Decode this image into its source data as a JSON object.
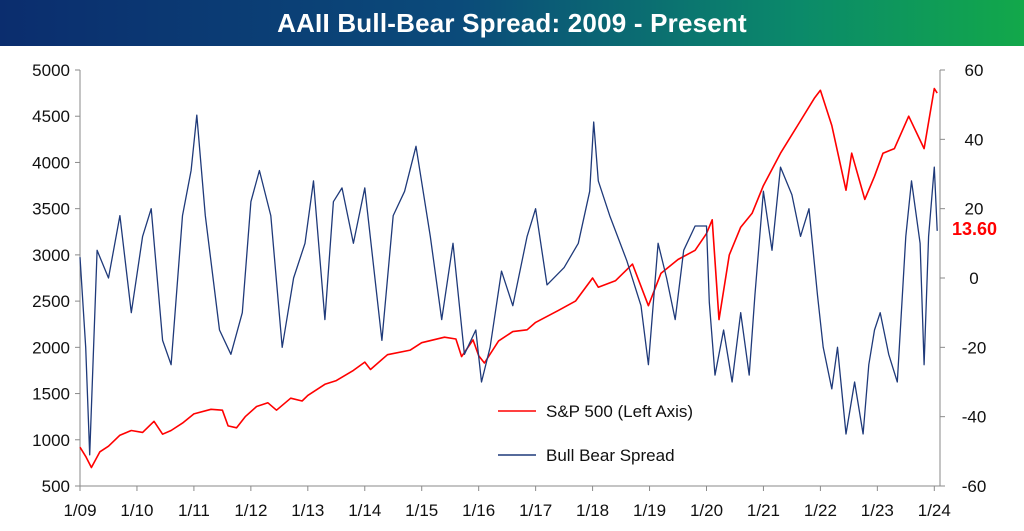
{
  "title": "AAII Bull-Bear Spread: 2009 - Present",
  "colors": {
    "sp500": "#ff0000",
    "spread": "#1f3a7a",
    "callout": "#ff0000"
  },
  "chart_data": {
    "type": "line",
    "title": "AAII Bull-Bear Spread: 2009 - Present",
    "x_range": [
      2009.0,
      2024.1
    ],
    "x_tick_labels": [
      "1/09",
      "1/10",
      "1/11",
      "1/12",
      "1/13",
      "1/14",
      "1/15",
      "1/16",
      "1/17",
      "1/18",
      "1/19",
      "1/20",
      "1/21",
      "1/22",
      "1/23",
      "1/24"
    ],
    "x_tick_values": [
      2009,
      2010,
      2011,
      2012,
      2013,
      2014,
      2015,
      2016,
      2017,
      2018,
      2019,
      2020,
      2021,
      2022,
      2023,
      2024
    ],
    "left_axis": {
      "range": [
        500,
        5000
      ],
      "ticks": [
        5000,
        4500,
        4000,
        3500,
        3000,
        2500,
        2000,
        1500,
        1000,
        500
      ]
    },
    "right_axis": {
      "range": [
        -60,
        60
      ],
      "ticks": [
        60,
        40,
        20,
        0,
        -20,
        -40,
        -60
      ]
    },
    "legend": [
      "S&P 500 (Left Axis)",
      "Bull Bear Spread"
    ],
    "legend_position": "lower-center",
    "latest_value_label": "13.60",
    "series": [
      {
        "name": "S&P 500 (Left Axis)",
        "axis": "left",
        "points": [
          [
            2009.0,
            920
          ],
          [
            2009.1,
            820
          ],
          [
            2009.2,
            700
          ],
          [
            2009.35,
            870
          ],
          [
            2009.5,
            930
          ],
          [
            2009.7,
            1050
          ],
          [
            2009.9,
            1100
          ],
          [
            2010.1,
            1080
          ],
          [
            2010.3,
            1200
          ],
          [
            2010.45,
            1060
          ],
          [
            2010.6,
            1100
          ],
          [
            2010.8,
            1180
          ],
          [
            2011.0,
            1280
          ],
          [
            2011.3,
            1330
          ],
          [
            2011.5,
            1320
          ],
          [
            2011.6,
            1150
          ],
          [
            2011.75,
            1130
          ],
          [
            2011.9,
            1250
          ],
          [
            2012.1,
            1360
          ],
          [
            2012.3,
            1400
          ],
          [
            2012.45,
            1320
          ],
          [
            2012.7,
            1450
          ],
          [
            2012.9,
            1420
          ],
          [
            2013.0,
            1480
          ],
          [
            2013.3,
            1600
          ],
          [
            2013.5,
            1640
          ],
          [
            2013.8,
            1750
          ],
          [
            2014.0,
            1840
          ],
          [
            2014.1,
            1760
          ],
          [
            2014.4,
            1920
          ],
          [
            2014.8,
            1970
          ],
          [
            2015.0,
            2050
          ],
          [
            2015.4,
            2110
          ],
          [
            2015.6,
            2090
          ],
          [
            2015.7,
            1900
          ],
          [
            2015.9,
            2080
          ],
          [
            2016.0,
            1910
          ],
          [
            2016.1,
            1830
          ],
          [
            2016.35,
            2070
          ],
          [
            2016.6,
            2170
          ],
          [
            2016.85,
            2190
          ],
          [
            2017.0,
            2270
          ],
          [
            2017.4,
            2400
          ],
          [
            2017.7,
            2500
          ],
          [
            2018.0,
            2750
          ],
          [
            2018.1,
            2650
          ],
          [
            2018.4,
            2720
          ],
          [
            2018.7,
            2900
          ],
          [
            2018.98,
            2450
          ],
          [
            2019.2,
            2800
          ],
          [
            2019.5,
            2950
          ],
          [
            2019.8,
            3050
          ],
          [
            2020.0,
            3230
          ],
          [
            2020.1,
            3380
          ],
          [
            2020.22,
            2300
          ],
          [
            2020.4,
            3000
          ],
          [
            2020.6,
            3300
          ],
          [
            2020.8,
            3450
          ],
          [
            2021.0,
            3750
          ],
          [
            2021.3,
            4100
          ],
          [
            2021.6,
            4400
          ],
          [
            2021.9,
            4700
          ],
          [
            2022.0,
            4780
          ],
          [
            2022.2,
            4400
          ],
          [
            2022.45,
            3700
          ],
          [
            2022.55,
            4100
          ],
          [
            2022.78,
            3600
          ],
          [
            2022.95,
            3850
          ],
          [
            2023.1,
            4100
          ],
          [
            2023.3,
            4150
          ],
          [
            2023.55,
            4500
          ],
          [
            2023.82,
            4150
          ],
          [
            2024.0,
            4800
          ],
          [
            2024.05,
            4750
          ]
        ]
      },
      {
        "name": "Bull Bear Spread",
        "axis": "right",
        "points": [
          [
            2009.0,
            6
          ],
          [
            2009.1,
            -20
          ],
          [
            2009.17,
            -51
          ],
          [
            2009.3,
            8
          ],
          [
            2009.5,
            0
          ],
          [
            2009.7,
            18
          ],
          [
            2009.9,
            -10
          ],
          [
            2010.1,
            12
          ],
          [
            2010.25,
            20
          ],
          [
            2010.45,
            -18
          ],
          [
            2010.6,
            -25
          ],
          [
            2010.8,
            18
          ],
          [
            2010.95,
            31
          ],
          [
            2011.05,
            47
          ],
          [
            2011.2,
            18
          ],
          [
            2011.45,
            -15
          ],
          [
            2011.65,
            -22
          ],
          [
            2011.85,
            -10
          ],
          [
            2012.0,
            22
          ],
          [
            2012.15,
            31
          ],
          [
            2012.35,
            18
          ],
          [
            2012.55,
            -20
          ],
          [
            2012.75,
            0
          ],
          [
            2012.95,
            10
          ],
          [
            2013.1,
            28
          ],
          [
            2013.3,
            -12
          ],
          [
            2013.45,
            22
          ],
          [
            2013.6,
            26
          ],
          [
            2013.8,
            10
          ],
          [
            2014.0,
            26
          ],
          [
            2014.3,
            -18
          ],
          [
            2014.5,
            18
          ],
          [
            2014.7,
            25
          ],
          [
            2014.9,
            38
          ],
          [
            2015.15,
            12
          ],
          [
            2015.35,
            -12
          ],
          [
            2015.55,
            10
          ],
          [
            2015.75,
            -22
          ],
          [
            2015.95,
            -15
          ],
          [
            2016.05,
            -30
          ],
          [
            2016.2,
            -20
          ],
          [
            2016.4,
            2
          ],
          [
            2016.6,
            -8
          ],
          [
            2016.85,
            12
          ],
          [
            2017.0,
            20
          ],
          [
            2017.2,
            -2
          ],
          [
            2017.5,
            3
          ],
          [
            2017.75,
            10
          ],
          [
            2017.95,
            25
          ],
          [
            2018.02,
            45
          ],
          [
            2018.1,
            28
          ],
          [
            2018.3,
            18
          ],
          [
            2018.6,
            5
          ],
          [
            2018.85,
            -8
          ],
          [
            2018.98,
            -25
          ],
          [
            2019.15,
            10
          ],
          [
            2019.3,
            0
          ],
          [
            2019.45,
            -12
          ],
          [
            2019.6,
            8
          ],
          [
            2019.8,
            15
          ],
          [
            2020.0,
            15
          ],
          [
            2020.05,
            -7
          ],
          [
            2020.15,
            -28
          ],
          [
            2020.3,
            -15
          ],
          [
            2020.45,
            -30
          ],
          [
            2020.6,
            -10
          ],
          [
            2020.75,
            -28
          ],
          [
            2020.85,
            -5
          ],
          [
            2021.0,
            25
          ],
          [
            2021.15,
            8
          ],
          [
            2021.3,
            32
          ],
          [
            2021.5,
            24
          ],
          [
            2021.65,
            12
          ],
          [
            2021.8,
            20
          ],
          [
            2021.95,
            -5
          ],
          [
            2022.05,
            -20
          ],
          [
            2022.2,
            -32
          ],
          [
            2022.3,
            -20
          ],
          [
            2022.45,
            -45
          ],
          [
            2022.6,
            -30
          ],
          [
            2022.75,
            -45
          ],
          [
            2022.85,
            -25
          ],
          [
            2022.95,
            -15
          ],
          [
            2023.05,
            -10
          ],
          [
            2023.2,
            -22
          ],
          [
            2023.35,
            -30
          ],
          [
            2023.5,
            12
          ],
          [
            2023.6,
            28
          ],
          [
            2023.75,
            10
          ],
          [
            2023.82,
            -25
          ],
          [
            2023.9,
            12
          ],
          [
            2024.0,
            32
          ],
          [
            2024.05,
            13.6
          ]
        ]
      }
    ]
  }
}
